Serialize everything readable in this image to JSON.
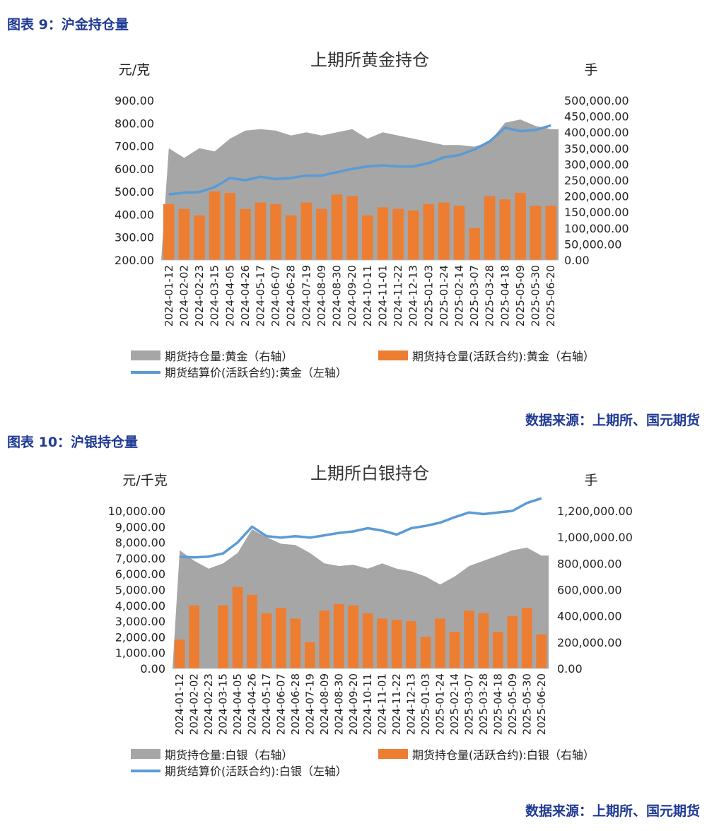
{
  "captions": {
    "fig9": "图表 9：沪金持仓量",
    "fig10": "图表 10：沪银持仓量",
    "source1": "数据来源：上期所、国元期货",
    "source2": "数据来源：上期所、国元期货"
  },
  "chart_data": [
    {
      "type": "area",
      "title": "上期所黄金持仓",
      "ylabel_left": "元/克",
      "ylabel_right": "手",
      "left_ticks": [
        "900.00",
        "800.00",
        "700.00",
        "600.00",
        "500.00",
        "400.00",
        "300.00",
        "200.00"
      ],
      "right_ticks": [
        "500,000.00",
        "450,000.00",
        "400,000.00",
        "350,000.00",
        "300,000.00",
        "250,000.00",
        "200,000.00",
        "150,000.00",
        "100,000.00",
        "50,000.00",
        "0.00"
      ],
      "ylim_left": [
        200,
        900
      ],
      "ylim_right": [
        0,
        500000
      ],
      "x_labels": [
        "2024-01-12",
        "2024-02-02",
        "2024-02-23",
        "2024-03-15",
        "2024-04-05",
        "2024-04-26",
        "2024-05-17",
        "2024-06-07",
        "2024-06-28",
        "2024-07-19",
        "2024-08-09",
        "2024-08-30",
        "2024-09-20",
        "2024-10-11",
        "2024-11-01",
        "2024-11-22",
        "2024-12-13",
        "2025-01-03",
        "2025-01-24",
        "2025-02-14",
        "2025-03-07",
        "2025-03-28",
        "2025-04-18",
        "2025-05-09",
        "2025-05-30",
        "2025-06-20"
      ],
      "colors": {
        "total": "#a6a6a6",
        "active": "#ed7d31",
        "price": "#5b9bd5"
      },
      "legend": [
        {
          "label": "期货持仓量:黄金（右轴）",
          "kind": "area"
        },
        {
          "label": "期货持仓量(活跃合约):黄金（右轴）",
          "kind": "bar"
        },
        {
          "label": "期货结算价(活跃合约):黄金（左轴）",
          "kind": "line"
        }
      ],
      "series": [
        {
          "name": "期货持仓量:黄金（右轴）",
          "axis": "right",
          "type": "area",
          "values": [
            350000,
            320000,
            350000,
            340000,
            380000,
            405000,
            410000,
            405000,
            390000,
            400000,
            390000,
            400000,
            410000,
            380000,
            400000,
            390000,
            380000,
            370000,
            360000,
            360000,
            355000,
            370000,
            430000,
            440000,
            420000,
            410000
          ]
        },
        {
          "name": "期货持仓量(活跃合约):黄金（右轴）",
          "axis": "right",
          "type": "bar",
          "values": [
            175000,
            160000,
            140000,
            215000,
            210000,
            160000,
            180000,
            175000,
            140000,
            180000,
            160000,
            205000,
            200000,
            140000,
            165000,
            160000,
            155000,
            175000,
            180000,
            170000,
            100000,
            200000,
            190000,
            210000,
            170000,
            170000
          ]
        },
        {
          "name": "期货结算价(活跃合约):黄金（左轴）",
          "axis": "left",
          "type": "line",
          "values": [
            488,
            495,
            498,
            520,
            560,
            550,
            565,
            555,
            560,
            570,
            570,
            585,
            600,
            610,
            615,
            610,
            610,
            625,
            650,
            660,
            685,
            720,
            780,
            765,
            770,
            790
          ]
        }
      ]
    },
    {
      "type": "area",
      "title": "上期所白银持仓",
      "ylabel_left": "元/千克",
      "ylabel_right": "手",
      "left_ticks": [
        "10,000.00",
        "9,000.00",
        "8,000.00",
        "7,000.00",
        "6,000.00",
        "5,000.00",
        "4,000.00",
        "3,000.00",
        "2,000.00",
        "1,000.00",
        "0.00"
      ],
      "right_ticks": [
        "1,200,000.00",
        "1,000,000.00",
        "800,000.00",
        "600,000.00",
        "400,000.00",
        "200,000.00",
        "0.00"
      ],
      "ylim_left": [
        0,
        10000
      ],
      "ylim_right": [
        0,
        1200000
      ],
      "x_labels": [
        "2024-01-12",
        "2024-02-02",
        "2024-02-23",
        "2024-03-15",
        "2024-04-05",
        "2024-04-26",
        "2024-05-17",
        "2024-06-07",
        "2024-06-28",
        "2024-07-19",
        "2024-08-09",
        "2024-08-30",
        "2024-09-20",
        "2024-10-11",
        "2024-11-01",
        "2024-11-22",
        "2024-12-13",
        "2025-01-03",
        "2025-01-24",
        "2025-02-14",
        "2025-03-07",
        "2025-03-28",
        "2025-04-18",
        "2025-05-09",
        "2025-05-30",
        "2025-06-20"
      ],
      "colors": {
        "total": "#a6a6a6",
        "active": "#ed7d31",
        "price": "#5b9bd5"
      },
      "legend": [
        {
          "label": "期货持仓量:白银（右轴）",
          "kind": "area"
        },
        {
          "label": "期货持仓量(活跃合约):白银（右轴）",
          "kind": "bar"
        },
        {
          "label": "期货结算价(活跃合约):白银（左轴）",
          "kind": "line"
        }
      ],
      "series": [
        {
          "name": "期货持仓量:白银（右轴）",
          "axis": "right",
          "type": "area",
          "values": [
            900000,
            820000,
            760000,
            800000,
            880000,
            1060000,
            1000000,
            950000,
            940000,
            880000,
            800000,
            780000,
            790000,
            760000,
            800000,
            760000,
            740000,
            700000,
            640000,
            700000,
            780000,
            820000,
            860000,
            900000,
            920000,
            860000
          ]
        },
        {
          "name": "期货持仓量(活跃合约):白银（右轴）",
          "axis": "right",
          "type": "bar",
          "values": [
            220000,
            480000,
            0,
            480000,
            620000,
            560000,
            420000,
            460000,
            380000,
            200000,
            440000,
            490000,
            480000,
            420000,
            380000,
            370000,
            360000,
            240000,
            380000,
            280000,
            440000,
            420000,
            280000,
            400000,
            460000,
            260000
          ]
        },
        {
          "name": "期货结算价(活跃合约):白银（左轴）",
          "axis": "left",
          "type": "line",
          "values": [
            7100,
            7050,
            7100,
            7300,
            8000,
            9000,
            8400,
            8300,
            8400,
            8300,
            8450,
            8600,
            8700,
            8900,
            8750,
            8500,
            8900,
            9050,
            9250,
            9600,
            9900,
            9800,
            9900,
            10000,
            10500,
            10800
          ]
        }
      ]
    }
  ]
}
